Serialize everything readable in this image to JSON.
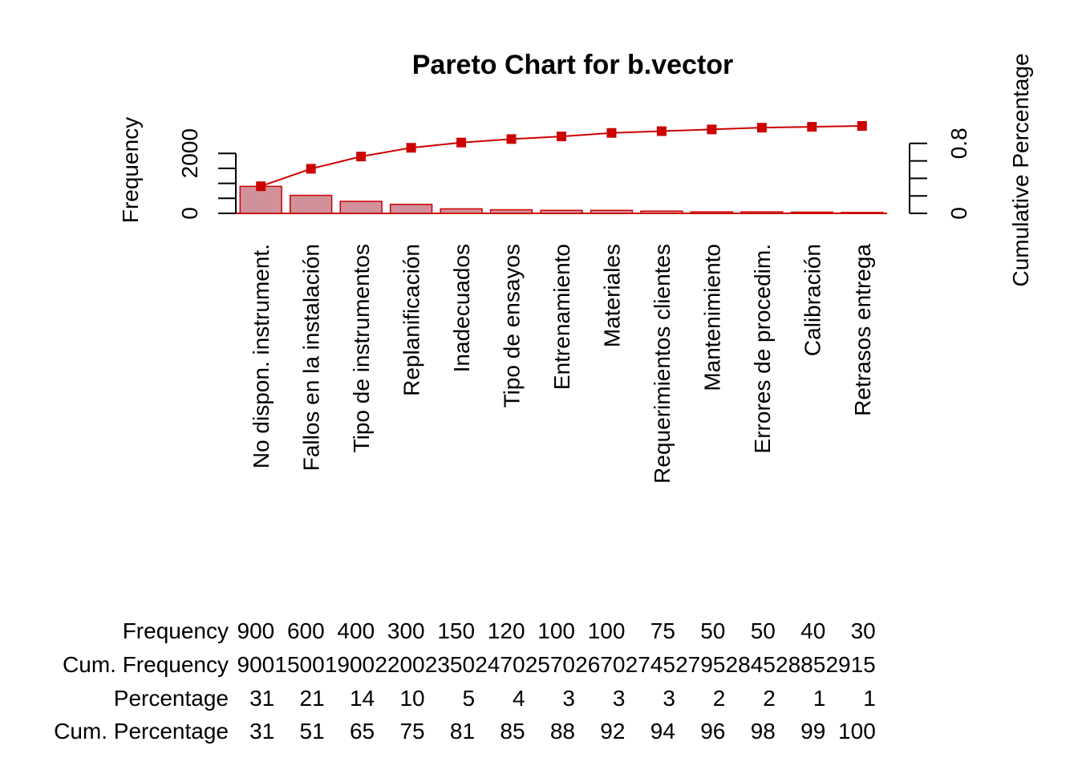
{
  "chart_data": {
    "type": "bar",
    "title": "Pareto Chart for  b.vector",
    "ylabel": "Frequency",
    "ylabel_right": "Cumulative Percentage",
    "categories": [
      "No dispon. instrument.",
      "Fallos en la instalación",
      "Tipo de instrumentos",
      "Replanificación",
      "Inadecuados",
      "Tipo de ensayos",
      "Entrenamiento",
      "Materiales",
      "Requerimientos clientes",
      "Mantenimiento",
      "Errores de procedim.",
      "Calibración",
      "Retrasos entrega"
    ],
    "series": [
      {
        "name": "Frequency",
        "values": [
          900,
          600,
          400,
          300,
          150,
          120,
          100,
          100,
          75,
          50,
          50,
          40,
          30
        ]
      },
      {
        "name": "Cum. Percentage",
        "values": [
          0.31,
          0.51,
          0.65,
          0.75,
          0.81,
          0.85,
          0.88,
          0.92,
          0.94,
          0.96,
          0.98,
          0.99,
          1.0
        ]
      }
    ],
    "ylim": [
      0,
      2915
    ],
    "ylim_right": [
      0,
      1
    ],
    "left_ticks": [
      "0",
      "2000"
    ],
    "right_ticks": [
      "0",
      "0.8"
    ],
    "colors": {
      "bar_fill": "#D1919A",
      "bar_border": "#CC0000",
      "line": "#CC0000",
      "axis": "#000000"
    },
    "table": {
      "row_labels": [
        "Frequency",
        "Cum. Frequency",
        "Percentage",
        "Cum. Percentage"
      ],
      "rows": [
        [
          "900",
          "600",
          "400",
          "300",
          "150",
          "120",
          "100",
          "100",
          "75",
          "50",
          "50",
          "40",
          "30"
        ],
        [
          "900",
          "1500",
          "1900",
          "2200",
          "2350",
          "2470",
          "2570",
          "2670",
          "2745",
          "2795",
          "2845",
          "2885",
          "2915"
        ],
        [
          "31",
          "21",
          "14",
          "10",
          "5",
          "4",
          "3",
          "3",
          "3",
          "2",
          "2",
          "1",
          "1"
        ],
        [
          "31",
          "51",
          "65",
          "75",
          "81",
          "85",
          "88",
          "92",
          "94",
          "96",
          "98",
          "99",
          "100"
        ]
      ]
    }
  }
}
